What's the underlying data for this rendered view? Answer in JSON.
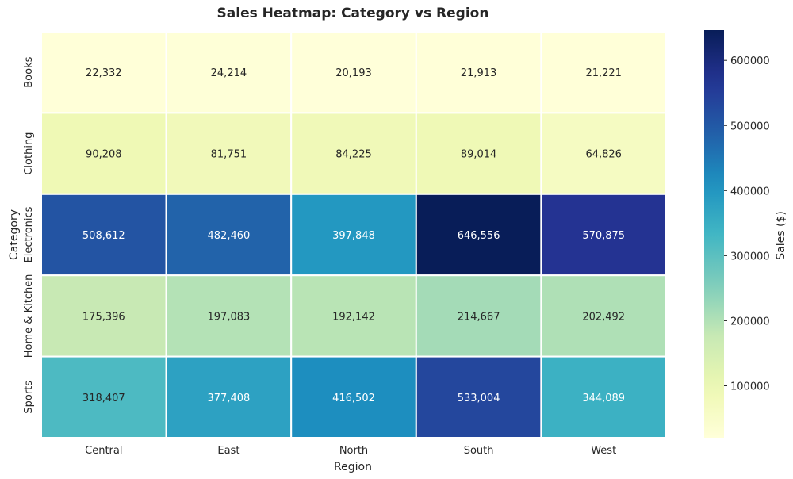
{
  "chart_data": {
    "type": "heatmap",
    "title": "Sales Heatmap: Category vs Region",
    "xlabel": "Region",
    "ylabel": "Category",
    "x_categories": [
      "Central",
      "East",
      "North",
      "South",
      "West"
    ],
    "y_categories": [
      "Books",
      "Clothing",
      "Electronics",
      "Home & Kitchen",
      "Sports"
    ],
    "values": [
      [
        22332,
        24214,
        20193,
        21913,
        21221
      ],
      [
        90208,
        81751,
        84225,
        89014,
        64826
      ],
      [
        508612,
        482460,
        397848,
        646556,
        570875
      ],
      [
        175396,
        197083,
        192142,
        214667,
        202492
      ],
      [
        318407,
        377408,
        416502,
        533004,
        344089
      ]
    ],
    "annotations": true,
    "colormap": "YlGnBu",
    "colorbar": {
      "label": "Sales ($)",
      "range": [
        20193,
        646556
      ],
      "ticks": [
        100000,
        200000,
        300000,
        400000,
        500000,
        600000
      ]
    },
    "grid_color": "#ffffff"
  }
}
